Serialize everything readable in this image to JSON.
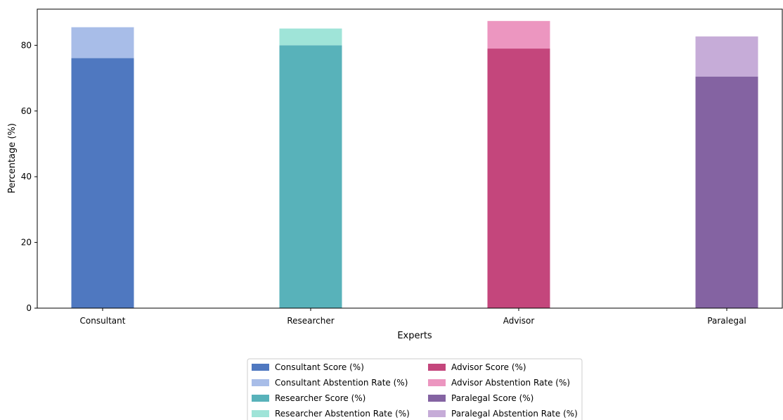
{
  "chart_data": {
    "type": "bar",
    "stacked": true,
    "title": "",
    "xlabel": "Experts",
    "ylabel": "Percentage (%)",
    "ylim": [
      0,
      91
    ],
    "yticks": [
      0,
      20,
      40,
      60,
      80
    ],
    "grid": false,
    "legend_position": "bottom-center",
    "categories": [
      "Consultant",
      "Researcher",
      "Advisor",
      "Paralegal"
    ],
    "series": [
      {
        "name": "Consultant Score (%)",
        "category": "Consultant",
        "role": "score",
        "value": 76.1,
        "color": "#4f78c0"
      },
      {
        "name": "Consultant Abstention Rate (%)",
        "category": "Consultant",
        "role": "abstention",
        "value": 9.4,
        "color": "#a8bde8"
      },
      {
        "name": "Researcher Score (%)",
        "category": "Researcher",
        "role": "score",
        "value": 80.0,
        "color": "#58b2ba"
      },
      {
        "name": "Researcher Abstention Rate (%)",
        "category": "Researcher",
        "role": "abstention",
        "value": 5.1,
        "color": "#9fe4d8"
      },
      {
        "name": "Advisor Score (%)",
        "category": "Advisor",
        "role": "score",
        "value": 79.0,
        "color": "#c4467c"
      },
      {
        "name": "Advisor Abstention Rate (%)",
        "category": "Advisor",
        "role": "abstention",
        "value": 8.4,
        "color": "#ec96c0"
      },
      {
        "name": "Paralegal Score (%)",
        "category": "Paralegal",
        "role": "score",
        "value": 70.5,
        "color": "#8463a2"
      },
      {
        "name": "Paralegal Abstention Rate (%)",
        "category": "Paralegal",
        "role": "abstention",
        "value": 12.2,
        "color": "#c6acd8"
      }
    ]
  }
}
